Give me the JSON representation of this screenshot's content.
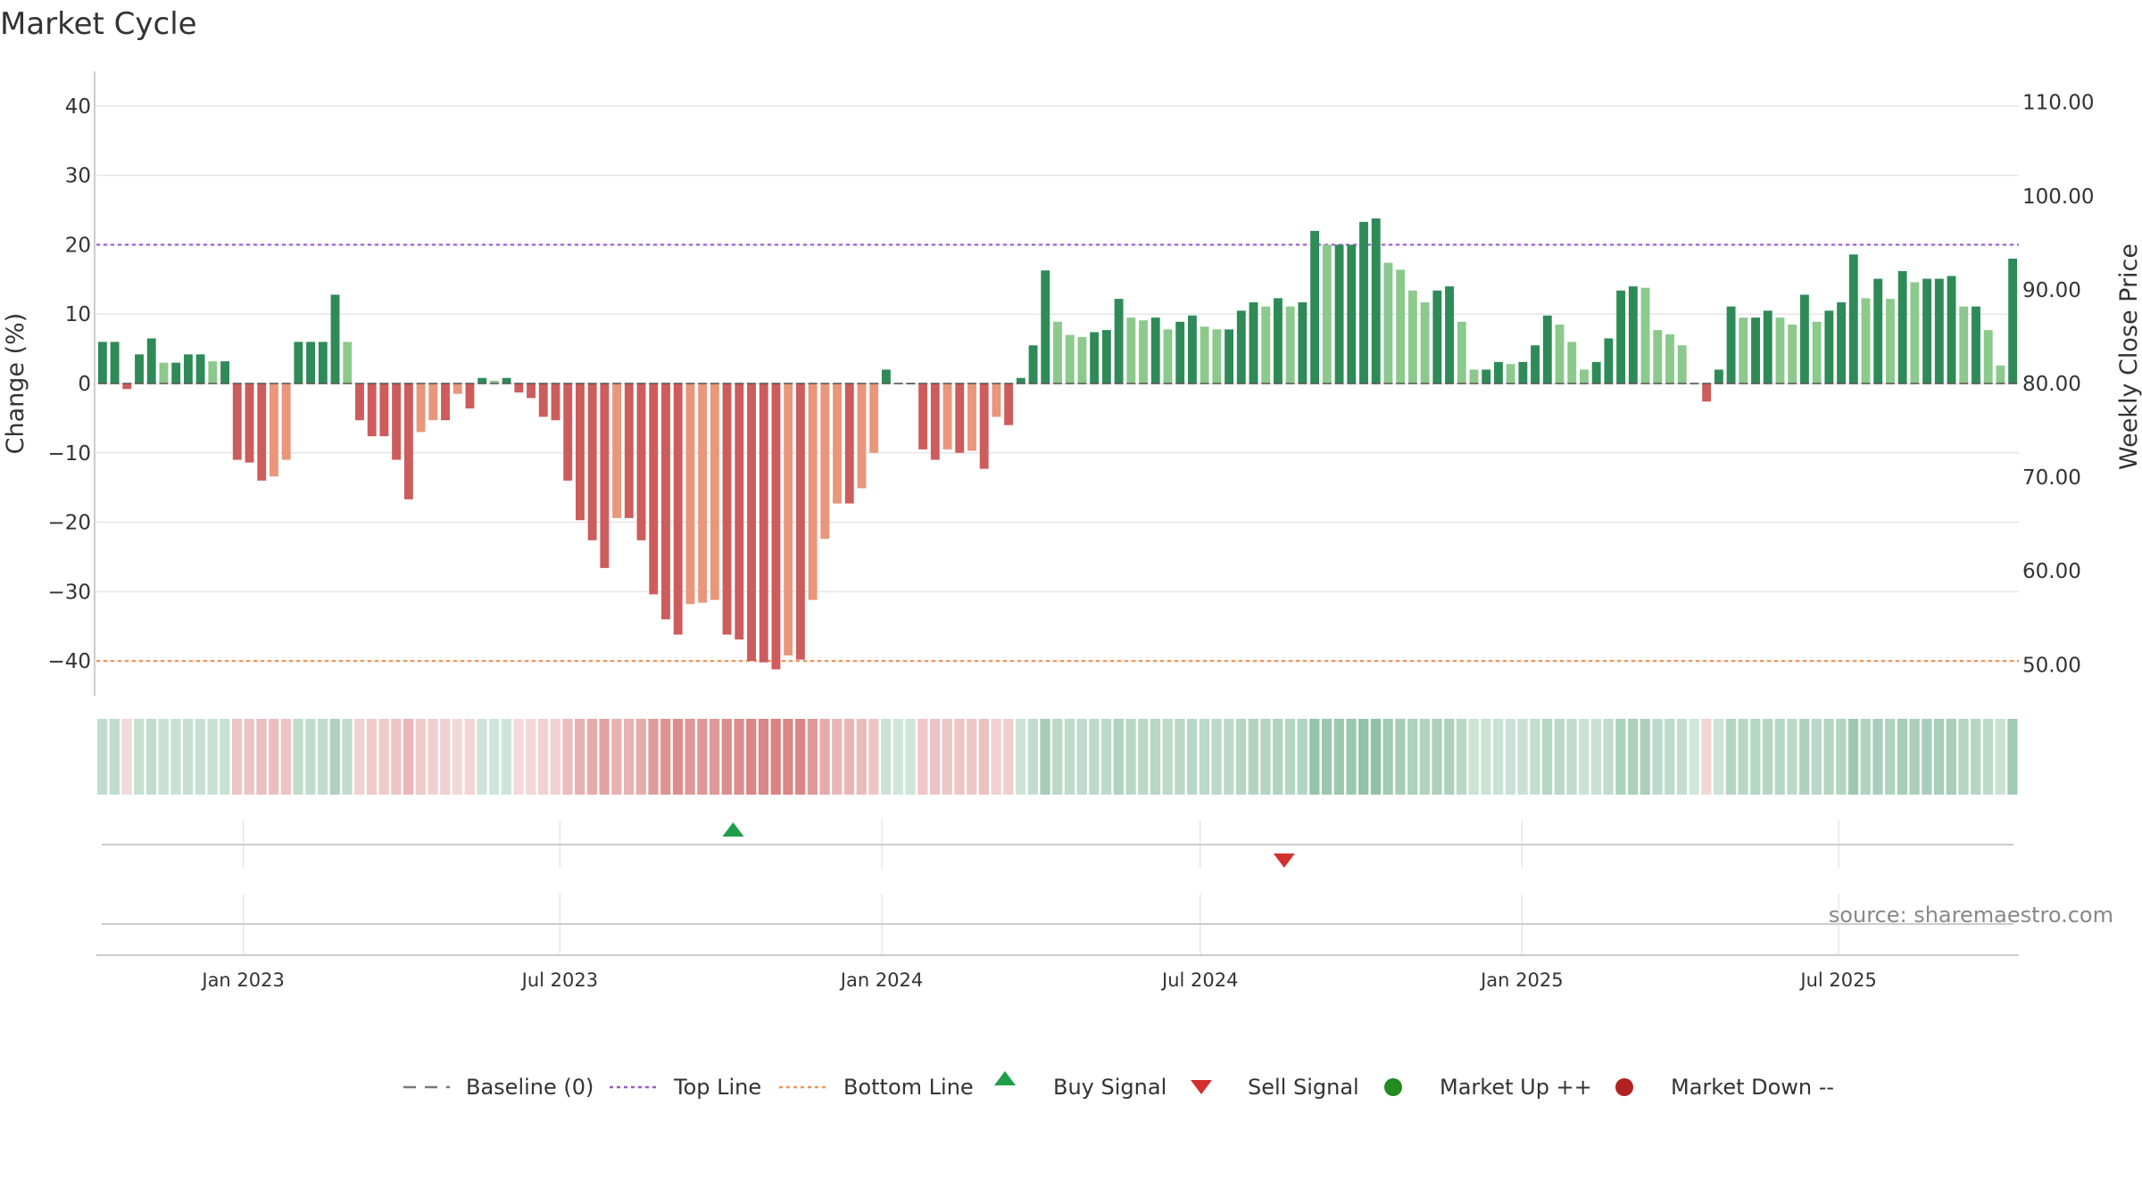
{
  "chart_data": {
    "type": "bar",
    "title": "Market Cycle",
    "ylabel": "Change (%)",
    "y2label": "Weekly Close Price",
    "ylim": [
      -45,
      45
    ],
    "y2lim": [
      46.7,
      113.3
    ],
    "yticks": [
      40,
      30,
      20,
      10,
      0,
      -10,
      -20,
      -30,
      -40
    ],
    "ytick_labels": [
      "40",
      "30",
      "20",
      "10",
      "0",
      "−10",
      "−20",
      "−30",
      "−40"
    ],
    "y2ticks": [
      110,
      100,
      90,
      80,
      70,
      60,
      50
    ],
    "y2tick_labels": [
      "110.00",
      "100.00",
      "90.00",
      "80.00",
      "70.00",
      "60.00",
      "50.00"
    ],
    "top_line": 20,
    "bottom_line": -40,
    "grid": true,
    "x_start": "2022-10-09",
    "x_end": "2025-10-12",
    "week_start": "2022-10-16",
    "week_step_days": 7,
    "xticks": [
      "2023-01-01",
      "2023-07-01",
      "2024-01-01",
      "2024-07-01",
      "2025-01-01",
      "2025-07-01"
    ],
    "xtick_labels": [
      "Jan 2023",
      "Jul 2023",
      "Jan 2024",
      "Jul 2024",
      "Jan 2025",
      "Jul 2025"
    ],
    "values": [
      6,
      6,
      -0.8,
      4.2,
      6.5,
      3,
      3,
      4.2,
      4.2,
      3.2,
      3.2,
      -11,
      -11.4,
      -14,
      -13.4,
      -11,
      6,
      6,
      6,
      12.8,
      6,
      -5.3,
      -7.6,
      -7.6,
      -11,
      -16.7,
      -7,
      -5.3,
      -5.3,
      -1.5,
      -3.6,
      0.8,
      0.4,
      0.8,
      -1.3,
      -2.1,
      -4.8,
      -5.3,
      -14,
      -19.7,
      -22.6,
      -26.6,
      -19.4,
      -19.4,
      -22.6,
      -30.4,
      -34,
      -36.2,
      -31.8,
      -31.6,
      -31.2,
      -36.2,
      -36.9,
      -40,
      -40.2,
      -41.2,
      -39.2,
      -39.8,
      -31.2,
      -22.4,
      -17.3,
      -17.3,
      -15.1,
      -10,
      2,
      0,
      0,
      -9.5,
      -11,
      -9.5,
      -10,
      -9.7,
      -12.3,
      -4.8,
      -6,
      0.8,
      5.5,
      16.3,
      8.9,
      7,
      6.7,
      7.4,
      7.7,
      12.2,
      9.5,
      9.1,
      9.5,
      7.8,
      8.9,
      9.8,
      8.2,
      7.8,
      7.8,
      10.5,
      11.7,
      11.1,
      12.3,
      11.1,
      11.7,
      22,
      20,
      20,
      20,
      23.3,
      23.8,
      17.4,
      16.4,
      13.4,
      11.7,
      13.4,
      14,
      8.9,
      2,
      2,
      3.1,
      2.8,
      3.1,
      5.5,
      9.8,
      8.5,
      6,
      2,
      3.1,
      6.5,
      13.4,
      14,
      13.8,
      7.7,
      7.1,
      5.5,
      0,
      -2.6,
      2,
      11.1,
      9.5,
      9.5,
      10.5,
      9.5,
      8.5,
      12.8,
      8.9,
      10.5,
      11.7,
      18.6,
      12.3,
      15.1,
      12.2,
      16.2,
      14.6,
      15.1,
      15.1,
      15.5,
      11.1,
      11.1,
      7.7,
      2.6,
      18
    ],
    "signals": [
      {
        "type": "buy",
        "date": "2023-10-08"
      },
      {
        "type": "sell",
        "date": "2024-08-18"
      }
    ],
    "legend_position": "bottom-center",
    "legend": [
      {
        "label": "Baseline (0)",
        "style": "dash",
        "color": "#777777"
      },
      {
        "label": "Top Line",
        "style": "dot",
        "color": "#9b59d0"
      },
      {
        "label": "Bottom Line",
        "style": "dot",
        "color": "#f0955a"
      },
      {
        "label": "Buy Signal",
        "style": "triangle-up",
        "color": "#1e9e4a"
      },
      {
        "label": "Sell Signal",
        "style": "triangle-down",
        "color": "#d32f2f"
      },
      {
        "label": "Market Up ++",
        "style": "circle",
        "color": "#228b22"
      },
      {
        "label": "Market Down --",
        "style": "circle",
        "color": "#b22222"
      }
    ],
    "source": "source: sharemaestro.com"
  },
  "colors": {
    "up_strong": "#2e8b57",
    "up_weak": "#8cc98c",
    "down_strong": "#cd5c5c",
    "down_weak": "#e9967a",
    "top_line": "#9b59d0",
    "bottom_line": "#f0955a",
    "buy": "#1e9e4a",
    "sell": "#d32f2f",
    "grid": "#e6e6e6",
    "axis": "#cccccc"
  }
}
